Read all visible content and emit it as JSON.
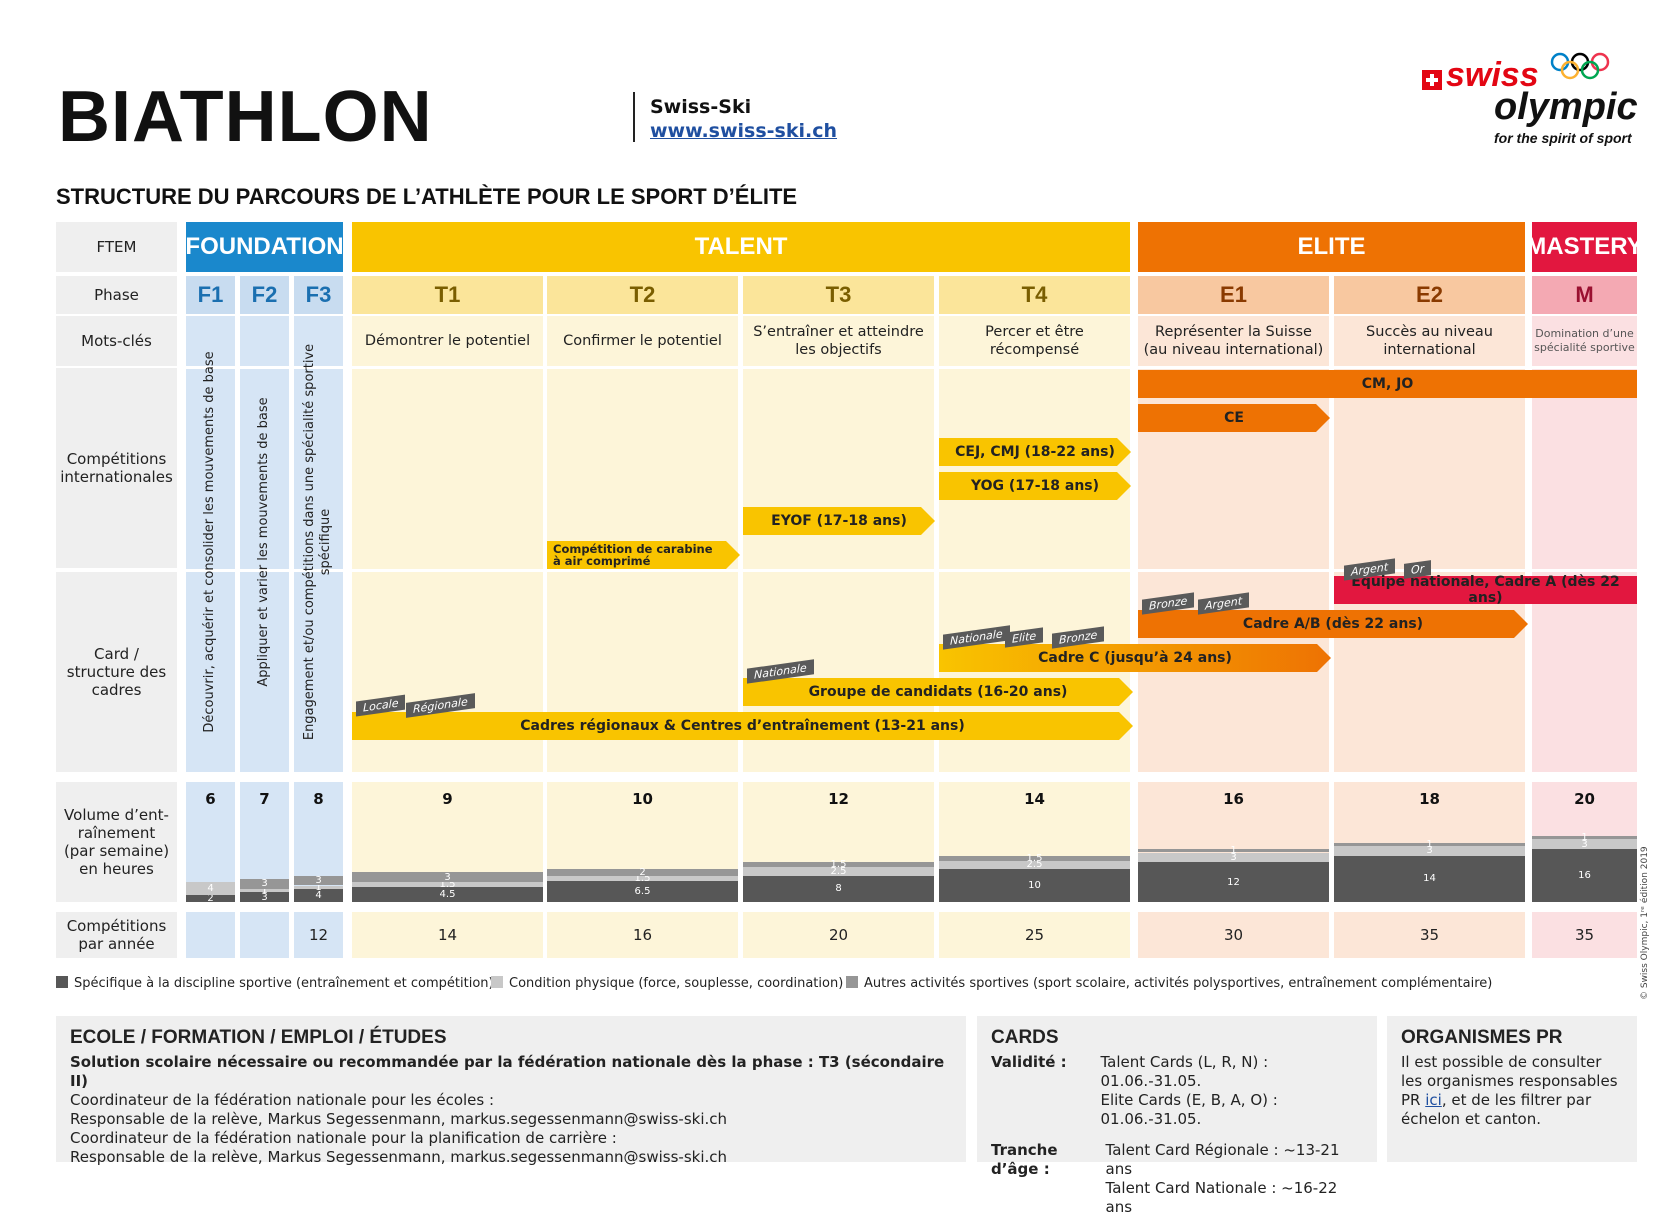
{
  "header": {
    "title": "BIATHLON",
    "federation": "Swiss-Ski",
    "federation_url": "www.swiss-ski.ch",
    "subtitle": "STRUCTURE DU PARCOURS DE L’ATHLÈTE POUR LE SPORT D’ÉLITE",
    "logo": {
      "swiss": "swiss",
      "olympic": "olympic",
      "tagline": "for the spirit of sport"
    }
  },
  "row_labels": {
    "ftem": "FTEM",
    "phase": "Phase",
    "keywords": "Mots-clés",
    "international": "Compétitions internationales",
    "cards": "Card / structure des cadres",
    "volume": "Volume d’ent-raînement (par semaine) en heures",
    "competitions": "Compétitions par année"
  },
  "stages": {
    "foundation": "FOUNDATION",
    "talent": "TALENT",
    "elite": "ELITE",
    "mastery": "MASTERY"
  },
  "colors": {
    "foundation": "#1a88cc",
    "talent": "#f9c400",
    "elite": "#ee7203",
    "mastery": "#e2173f",
    "specific": "#575757",
    "physical": "#c8c8c8",
    "other": "#969696"
  },
  "phases": [
    "F1",
    "F2",
    "F3",
    "T1",
    "T2",
    "T3",
    "T4",
    "E1",
    "E2",
    "M"
  ],
  "foundation_keywords": [
    "Découvrir, acquérir et consolider les mouvements de base",
    "Appliquer et varier les mouvements de base",
    "Engagement et/ou compétitions dans une spécialité sportive spécifique"
  ],
  "keywords": [
    "Démontrer le potentiel",
    "Confirmer le potentiel",
    "S’entraîner et atteindre les objectifs",
    "Percer et être récompensé",
    "Représenter la Suisse (au niveau international)",
    "Succès au niveau international",
    "Domination d’une spécialité sportive"
  ],
  "international": {
    "cmjo": "CM, JO",
    "ce": "CE",
    "cej": "CEJ, CMJ (18-22 ans)",
    "yog": "YOG (17-18 ans)",
    "eyof": "EYOF (17-18 ans)",
    "carabine": "Compétition de carabine à air comprimé"
  },
  "cards": {
    "equipe": "Equipe nationale, Cadre A (dès 22 ans)",
    "cadre_ab": "Cadre A/B (dès 22 ans)",
    "cadre_c": "Cadre C (jusqu’à 24 ans)",
    "groupe": "Groupe de candidats (16-20 ans)",
    "regionaux": "Cadres régionaux & Centres d’entraînement (13-21 ans)",
    "badges": {
      "argent_e2": "Argent",
      "or": "Or",
      "bronze_e1": "Bronze",
      "argent_e1": "Argent",
      "nationale_t4": "Nationale",
      "elite": "Elite",
      "bronze_t4": "Bronze",
      "nationale_t3": "Nationale",
      "locale": "Locale",
      "regionale": "Régionale"
    }
  },
  "volume": [
    {
      "total": "6",
      "specific": 2,
      "physical": 4,
      "other": 0
    },
    {
      "total": "7",
      "specific": 3,
      "physical": 1,
      "other": 3
    },
    {
      "total": "8",
      "specific": 4,
      "physical": 1,
      "other": 3
    },
    {
      "total": "9",
      "specific": 4.5,
      "physical": 1.5,
      "other": 3
    },
    {
      "total": "10",
      "specific": 6.5,
      "physical": 1.5,
      "other": 2
    },
    {
      "total": "12",
      "specific": 8,
      "physical": 2.5,
      "other": 1.5
    },
    {
      "total": "14",
      "specific": 10,
      "physical": 2.5,
      "other": 1.5
    },
    {
      "total": "16",
      "specific": 12,
      "physical": 3,
      "other": 1
    },
    {
      "total": "18",
      "specific": 14,
      "physical": 3,
      "other": 1
    },
    {
      "total": "20",
      "specific": 16,
      "physical": 3,
      "other": 1
    }
  ],
  "competitions": [
    "",
    "",
    "12",
    "14",
    "16",
    "20",
    "25",
    "30",
    "35",
    "35"
  ],
  "legend": {
    "specific": "Spécifique à la discipline sportive (entraînement et compétition)",
    "physical": "Condition physique (force, souplesse, coordination)",
    "other": "Autres activités sportives (sport scolaire, activités polysportives, entraînement complémentaire)"
  },
  "school": {
    "title": "ECOLE / FORMATION / EMPLOI / ÉTUDES",
    "line1": "Solution scolaire nécessaire ou recommandée par la fédération nationale dès la phase : T3 (sécondaire II)",
    "line2": "Coordinateur de la fédération nationale pour les écoles :",
    "line3": "Responsable de la relève, Markus Segessenmann, markus.segessenmann@swiss-ski.ch",
    "line4": "Coordinateur de la fédération nationale pour la planification de carrière :",
    "line5": "Responsable de la relève, Markus Segessenmann, markus.segessenmann@swiss-ski.ch"
  },
  "cards_panel": {
    "title": "CARDS",
    "validity_label": "Validité :",
    "validity_1": "Talent Cards (L, R, N) : 01.06.-31.05.",
    "validity_2": "Elite Cards (E, B, A, O) : 01.06.-31.05.",
    "age_label": "Tranche d’âge :",
    "age_1": "Talent Card Régionale : ~13-21 ans",
    "age_2": "Talent Card Nationale : ~16-22 ans"
  },
  "pr_panel": {
    "title": "ORGANISMES PR",
    "text_1": "Il est possible de consulter les organismes responsables PR ",
    "link": "ici",
    "text_2": ", et de les filtrer par échelon et canton."
  },
  "edition": "© Swiss Olympic, 1ʳᵉ édition 2019"
}
